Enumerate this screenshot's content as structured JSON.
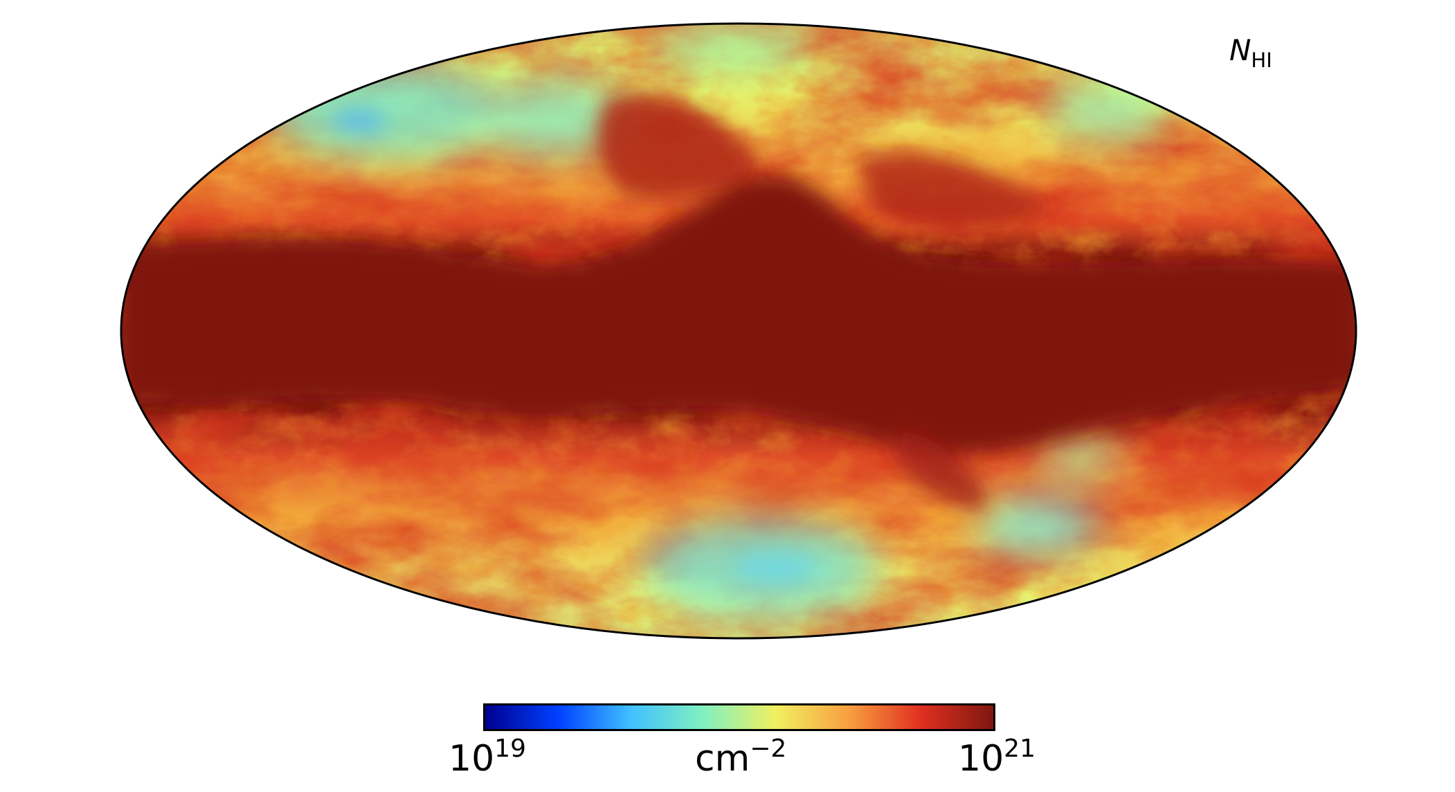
{
  "map": {
    "projection": "Mollweide",
    "quantity_symbol": "N",
    "quantity_subscript": "HI"
  },
  "colorbar": {
    "min_base": "10",
    "min_exp": "19",
    "max_base": "10",
    "max_exp": "21",
    "unit_base": "cm",
    "unit_exp": "−2",
    "colormap": [
      "#00008f",
      "#0040ff",
      "#40c0ff",
      "#80f0c0",
      "#f0f060",
      "#f8a040",
      "#e03020",
      "#7f1710"
    ]
  },
  "colors": {
    "saturated_plane": "#7f1710",
    "outline": "#000000"
  }
}
